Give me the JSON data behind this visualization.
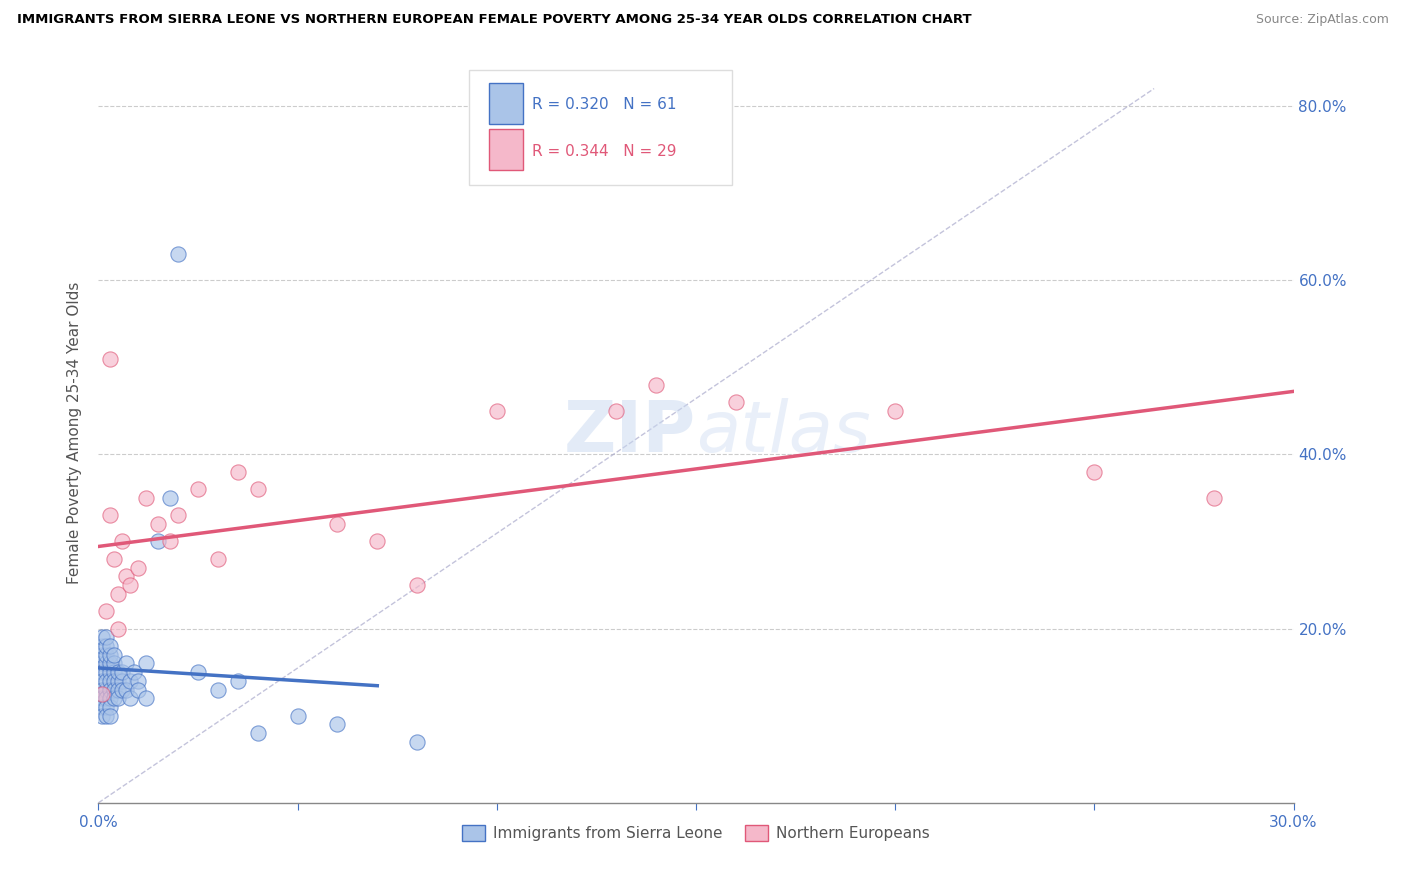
{
  "title": "IMMIGRANTS FROM SIERRA LEONE VS NORTHERN EUROPEAN FEMALE POVERTY AMONG 25-34 YEAR OLDS CORRELATION CHART",
  "source": "Source: ZipAtlas.com",
  "ylabel": "Female Poverty Among 25-34 Year Olds",
  "xlim": [
    0.0,
    0.3
  ],
  "ylim": [
    0.0,
    0.85
  ],
  "R_blue": 0.32,
  "N_blue": 61,
  "R_pink": 0.344,
  "N_pink": 29,
  "color_blue": "#aac4e8",
  "color_pink": "#f5b8ca",
  "color_blue_line": "#4472c4",
  "color_pink_line": "#e05878",
  "diag_line_color": "#aaaacc",
  "background_color": "#ffffff",
  "grid_color": "#cccccc",
  "blue_scatter_x": [
    0.001,
    0.001,
    0.001,
    0.001,
    0.001,
    0.001,
    0.001,
    0.001,
    0.001,
    0.001,
    0.002,
    0.002,
    0.002,
    0.002,
    0.002,
    0.002,
    0.002,
    0.002,
    0.002,
    0.002,
    0.003,
    0.003,
    0.003,
    0.003,
    0.003,
    0.003,
    0.003,
    0.003,
    0.003,
    0.004,
    0.004,
    0.004,
    0.004,
    0.004,
    0.004,
    0.005,
    0.005,
    0.005,
    0.005,
    0.006,
    0.006,
    0.006,
    0.007,
    0.007,
    0.008,
    0.008,
    0.009,
    0.01,
    0.01,
    0.012,
    0.012,
    0.015,
    0.018,
    0.02,
    0.025,
    0.03,
    0.035,
    0.04,
    0.05,
    0.06,
    0.08
  ],
  "blue_scatter_y": [
    0.16,
    0.17,
    0.15,
    0.14,
    0.13,
    0.18,
    0.12,
    0.19,
    0.11,
    0.1,
    0.15,
    0.16,
    0.17,
    0.13,
    0.14,
    0.12,
    0.18,
    0.11,
    0.19,
    0.1,
    0.15,
    0.14,
    0.16,
    0.13,
    0.12,
    0.17,
    0.11,
    0.18,
    0.1,
    0.15,
    0.14,
    0.13,
    0.16,
    0.12,
    0.17,
    0.14,
    0.15,
    0.13,
    0.12,
    0.14,
    0.13,
    0.15,
    0.13,
    0.16,
    0.12,
    0.14,
    0.15,
    0.14,
    0.13,
    0.16,
    0.12,
    0.3,
    0.35,
    0.63,
    0.15,
    0.13,
    0.14,
    0.08,
    0.1,
    0.09,
    0.07
  ],
  "pink_scatter_x": [
    0.001,
    0.002,
    0.003,
    0.003,
    0.004,
    0.005,
    0.005,
    0.006,
    0.007,
    0.008,
    0.01,
    0.012,
    0.015,
    0.018,
    0.02,
    0.025,
    0.03,
    0.035,
    0.04,
    0.06,
    0.07,
    0.08,
    0.1,
    0.13,
    0.14,
    0.16,
    0.2,
    0.25,
    0.28
  ],
  "pink_scatter_y": [
    0.125,
    0.22,
    0.51,
    0.33,
    0.28,
    0.24,
    0.2,
    0.3,
    0.26,
    0.25,
    0.27,
    0.35,
    0.32,
    0.3,
    0.33,
    0.36,
    0.28,
    0.38,
    0.36,
    0.32,
    0.3,
    0.25,
    0.45,
    0.45,
    0.48,
    0.46,
    0.45,
    0.38,
    0.35
  ]
}
